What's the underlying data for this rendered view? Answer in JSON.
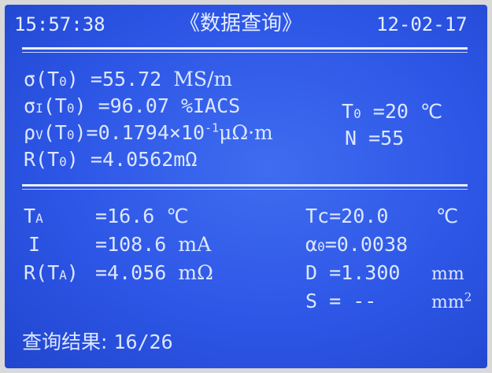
{
  "header": {
    "time": "15:57:38",
    "title": "《数据查询》",
    "date": "12-02-17"
  },
  "top": {
    "sigma": {
      "label": "σ(T",
      "sub": "0",
      "close": ")",
      "value": "=55.72",
      "unit": "MS/m"
    },
    "sigma_i": {
      "label": "σ",
      "sub1": "I",
      "mid": "(T",
      "sub2": "0",
      "close": ")",
      "value": "=96.07",
      "unit": "%IACS"
    },
    "rho": {
      "label": "ρ",
      "sub1": "V",
      "mid": "(T",
      "sub2": "0",
      "close": ")",
      "value": "=0.1794×10",
      "exp": "-1",
      "unit": "μΩ·m"
    },
    "r": {
      "label": "R(T",
      "sub": "0",
      "close": ")",
      "value": "=4.0562mΩ"
    },
    "t0": {
      "label": "T",
      "sub": "0",
      "value": "=20",
      "unit": "℃"
    },
    "n": {
      "label": "N",
      "value": "=55"
    }
  },
  "bottom": {
    "ta": {
      "label": "T",
      "sub": "A",
      "value": "=16.6",
      "unit": "℃"
    },
    "i": {
      "label": "I",
      "value": "=108.6",
      "unit": "mA"
    },
    "rta": {
      "label": "R(T",
      "sub": "A",
      "close": ")",
      "value": "=4.056",
      "unit": "mΩ"
    },
    "tc": {
      "label": "Tc",
      "value": "=20.0",
      "unit": "℃"
    },
    "alpha": {
      "label": "α",
      "sub": "0",
      "value": "=0.0038"
    },
    "d": {
      "label": "D",
      "value": "=1.300",
      "unit": "mm"
    },
    "s": {
      "label": "S",
      "value": "= --",
      "unit": "mm",
      "unit_exp": "2"
    }
  },
  "footer": {
    "label": "查询结果:",
    "value": "16/26"
  },
  "colors": {
    "screen": "#2d56e6",
    "text": "#dde7ff"
  }
}
